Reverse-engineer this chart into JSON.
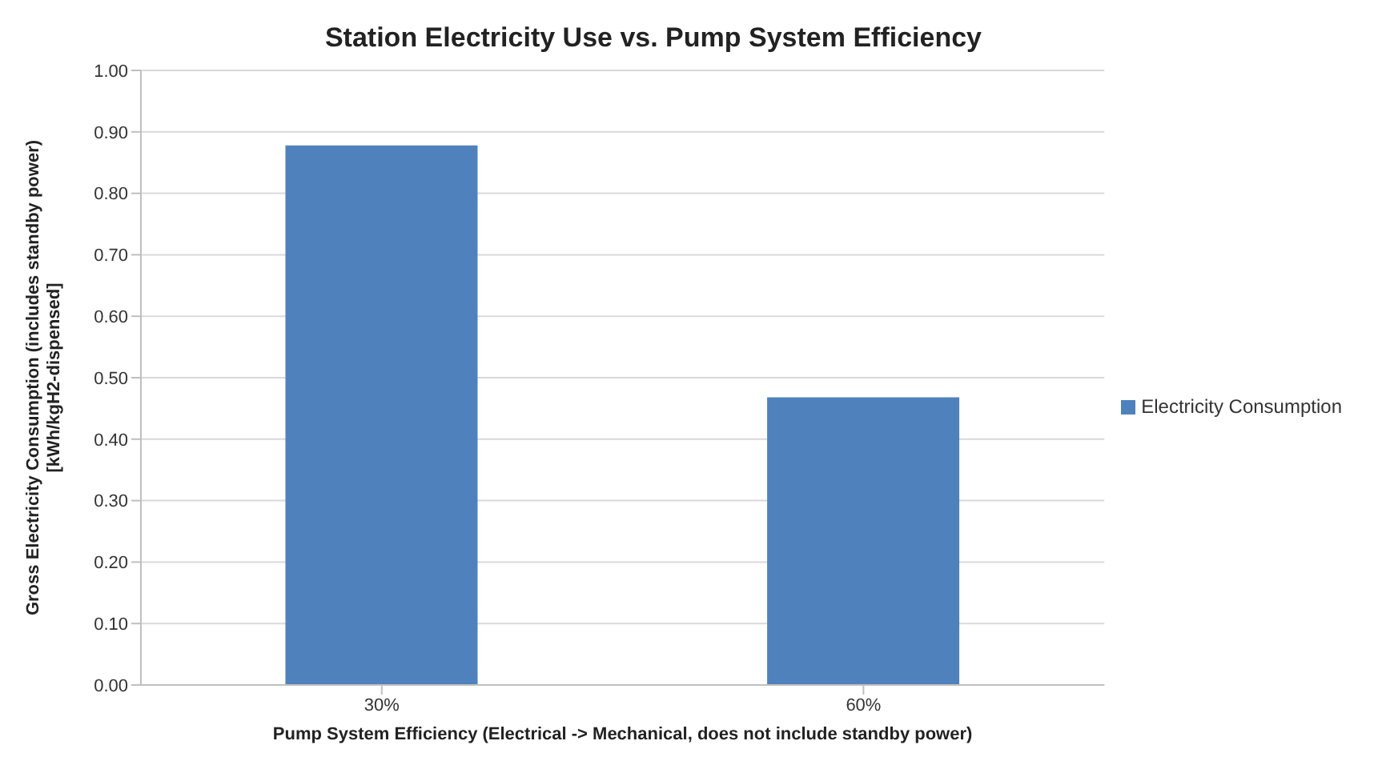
{
  "chart_data": {
    "type": "bar",
    "title": "Station Electricity Use vs. Pump System Efficiency",
    "xlabel": "Pump System Efficiency (Electrical -> Mechanical, does not include standby power)",
    "ylabel": "Gross Electricity Consumption (includes standby power) [kWh/kgH2-dispensed]",
    "categories": [
      "30%",
      "60%"
    ],
    "series": [
      {
        "name": "Electricity Consumption",
        "color": "#4f81bd",
        "values": [
          0.878,
          0.468
        ]
      }
    ],
    "ylim": [
      0,
      1
    ],
    "yticks": [
      {
        "value": 0,
        "label": "0.00"
      },
      {
        "value": 0.1,
        "label": "0.10"
      },
      {
        "value": 0.2,
        "label": "0.20"
      },
      {
        "value": 0.3,
        "label": "0.30"
      },
      {
        "value": 0.4,
        "label": "0.40"
      },
      {
        "value": 0.5,
        "label": "0.50"
      },
      {
        "value": 0.6,
        "label": "0.60"
      },
      {
        "value": 0.7,
        "label": "0.70"
      },
      {
        "value": 0.8,
        "label": "0.80"
      },
      {
        "value": 0.9,
        "label": "0.90"
      },
      {
        "value": 1,
        "label": "1.00"
      }
    ],
    "grid": "y",
    "legend": "right"
  }
}
